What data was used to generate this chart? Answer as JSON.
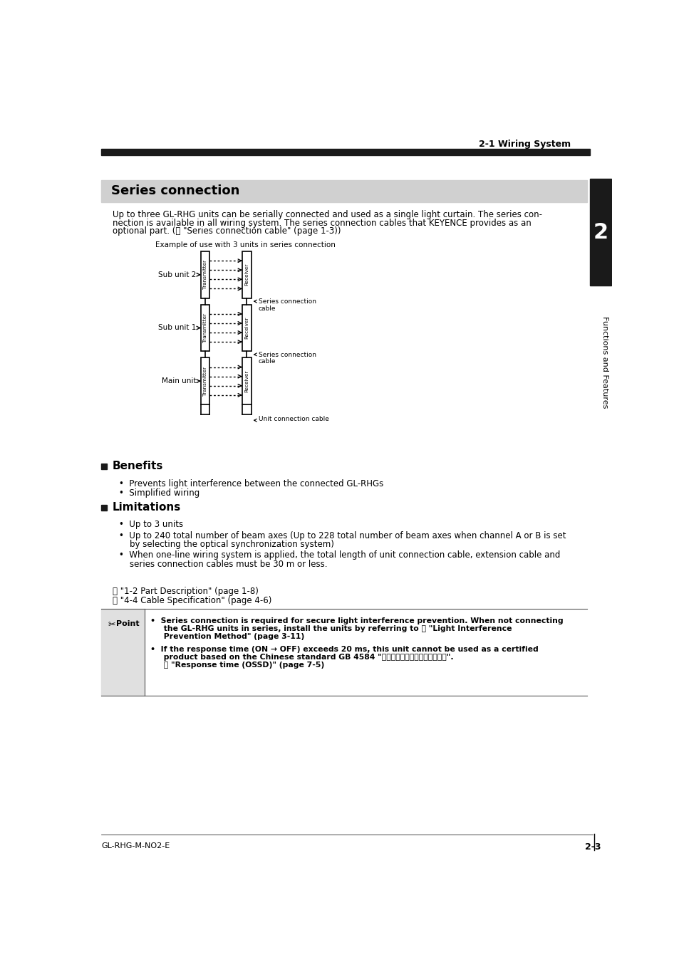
{
  "page_header_right": "2-1 Wiring System",
  "section_title": "Series connection",
  "section_title_bg": "#d0d0d0",
  "intro_lines": [
    "Up to three GL-RHG units can be serially connected and used as a single light curtain. The series con-",
    "nection is available in all wiring system. The series connection cables that KEYENCE provides as an",
    "optional part. (⎕ \"Series connection cable\" (page 1-3))"
  ],
  "diagram_caption": "Example of use with 3 units in series connection",
  "series_cable_label": "Series connection\ncable",
  "unit_conn_label": "Unit connection cable",
  "benefits_title": "Benefits",
  "benefits_items": [
    "Prevents light interference between the connected GL-RHGs",
    "Simplified wiring"
  ],
  "limitations_title": "Limitations",
  "limitations_items": [
    [
      "Up to 3 units"
    ],
    [
      "Up to 240 total number of beam axes (Up to 228 total number of beam axes when channel A or B is set",
      "by selecting the optical synchronization system)"
    ],
    [
      "When one-line wiring system is applied, the total length of unit connection cable, extension cable and",
      "series connection cables must be 30 m or less."
    ]
  ],
  "ref1": "⎕ \"1-2 Part Description\" (page 1-8)",
  "ref2": "⎕ \"4-4 Cable Specification\" (page 4-6)",
  "point_text1_lines": [
    "Series connection is required for secure light interference prevention. When not connecting",
    "the GL-RHG units in series, install the units by referring to ⎕ \"Light Interference",
    "Prevention Method\" (page 3-11)"
  ],
  "point_text2_lines": [
    "If the response time (ON → OFF) exceeds 20 ms, this unit cannot be used as a certified",
    "product based on the Chinese standard GB 4584 \"压力机用光电保护装置技术条件\".",
    "⎕ \"Response time (OSSD)\" (page 7-5)"
  ],
  "side_tab_text": "Functions and Features",
  "side_tab_num": "2",
  "footer_left": "GL-RHG-M-NO2-E",
  "footer_right": "2-3",
  "bg_color": "#ffffff",
  "text_color": "#000000",
  "dark_bar_color": "#1a1a1a",
  "diagram_line_color": "#000000",
  "unit_labels": [
    "Sub unit 2",
    "Sub unit 1",
    "Main unit"
  ]
}
